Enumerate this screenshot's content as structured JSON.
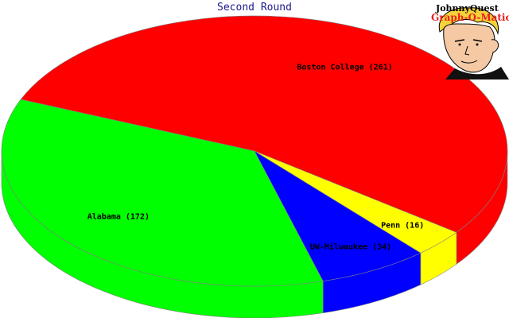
{
  "chart_data": {
    "type": "pie",
    "title": "Second Round",
    "slices": [
      {
        "label": "Boston College (261)",
        "name": "Boston College",
        "value": 261,
        "color": "#ff0000"
      },
      {
        "label": "Alabama (172)",
        "name": "Alabama",
        "value": 172,
        "color": "#00ff00"
      },
      {
        "label": "UW-Milwaukee (34)",
        "name": "UW-Milwaukee",
        "value": 34,
        "color": "#0000ff"
      },
      {
        "label": "Penn (16)",
        "name": "Penn",
        "value": 16,
        "color": "#ffff00"
      }
    ],
    "style": "3d"
  },
  "logo": {
    "line1": "JohnnyQuest",
    "line2": "Graph-O-Matic"
  }
}
